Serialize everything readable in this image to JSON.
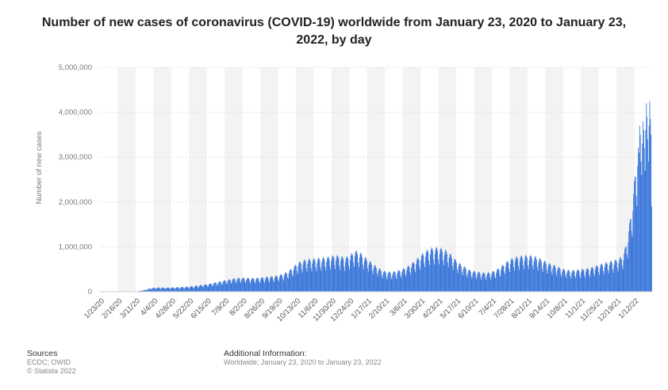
{
  "chart_data": {
    "type": "bar",
    "title": "Number of new cases of coronavirus (COVID-19) worldwide from January 23, 2020 to January 23, 2022, by day",
    "ylabel": "Number of new cases",
    "xlabel": "",
    "ylim": [
      0,
      5000000
    ],
    "yticks": [
      "0",
      "1,000,000",
      "2,000,000",
      "3,000,000",
      "4,000,000",
      "5,000,000"
    ],
    "ytick_values": [
      0,
      1000000,
      2000000,
      3000000,
      4000000,
      5000000
    ],
    "grid": true,
    "color": "#2f6fd8",
    "x_tick_labels": [
      "1/23/20",
      "2/16/20",
      "3/11/20",
      "4/4/20",
      "4/28/20",
      "5/22/20",
      "6/15/20",
      "7/9/20",
      "8/2/20",
      "8/26/20",
      "9/19/20",
      "10/13/20",
      "11/6/20",
      "11/30/20",
      "12/24/20",
      "1/17/21",
      "2/10/21",
      "3/6/21",
      "3/30/21",
      "4/23/21",
      "5/17/21",
      "6/10/21",
      "7/4/21",
      "7/28/21",
      "8/21/21",
      "9/14/21",
      "10/8/21",
      "11/1/21",
      "11/25/21",
      "12/19/21",
      "1/12/22"
    ],
    "start_date": "2020-01-23",
    "end_date": "2022-01-23",
    "series": [
      {
        "values_weekly_approx": [
          600,
          2000,
          3000,
          2500,
          2000,
          3000,
          1500,
          2500,
          10000,
          25000,
          50000,
          75000,
          80000,
          80000,
          78000,
          82000,
          85000,
          88000,
          92000,
          100000,
          110000,
          125000,
          135000,
          150000,
          170000,
          190000,
          210000,
          225000,
          250000,
          260000,
          270000,
          265000,
          260000,
          265000,
          270000,
          280000,
          290000,
          300000,
          320000,
          350000,
          400000,
          480000,
          560000,
          600000,
          620000,
          630000,
          640000,
          650000,
          660000,
          680000,
          700000,
          680000,
          650000,
          700000,
          790000,
          760000,
          680000,
          600000,
          520000,
          460000,
          400000,
          380000,
          380000,
          400000,
          430000,
          470000,
          540000,
          610000,
          700000,
          780000,
          830000,
          850000,
          840000,
          810000,
          750000,
          650000,
          560000,
          500000,
          430000,
          400000,
          380000,
          370000,
          360000,
          380000,
          420000,
          480000,
          560000,
          620000,
          660000,
          680000,
          690000,
          700000,
          680000,
          650000,
          600000,
          550000,
          520000,
          480000,
          440000,
          420000,
          410000,
          420000,
          430000,
          440000,
          460000,
          490000,
          520000,
          550000,
          580000,
          600000,
          630000,
          700000,
          1100000,
          1800000,
          2800000,
          3300000,
          3500000,
          3000000
        ]
      }
    ]
  },
  "footer": {
    "sources_title": "Sources",
    "sources_line1": "ECDC; OWID",
    "sources_line2": "© Statista 2022",
    "info_title": "Additional Information:",
    "info_text": "Worldwide; January 23, 2020 to January 23, 2022"
  }
}
